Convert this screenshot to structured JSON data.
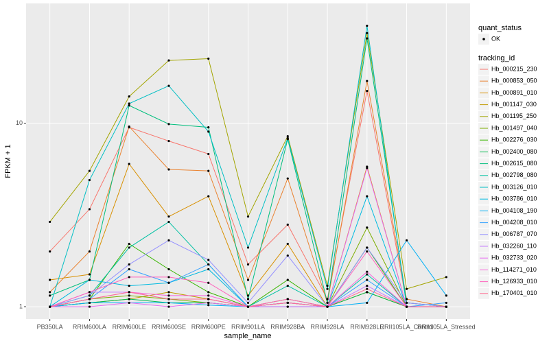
{
  "chart_data": {
    "type": "line",
    "x_label": "sample_name",
    "y_label": "FPKM + 1",
    "y_log": true,
    "grid": true,
    "categories": [
      "PB350LA",
      "RRIM600LA",
      "RRIM600LE",
      "RRIM600SE",
      "RRIM600PE",
      "RRIM901LA",
      "RRIM928BA",
      "RRIM928LA",
      "RRIM928LE",
      "RRII105LA_Control",
      "RRII105LA_Stressed"
    ],
    "ylim": [
      0.857,
      45
    ],
    "yticks": [
      1,
      10
    ],
    "point_color": "#000000",
    "quant_legend": {
      "title": "quant_status",
      "labels": [
        "OK"
      ]
    },
    "legend_title": "tracking_id",
    "series": [
      {
        "name": "Hb_000215_230",
        "color": "#F8766D",
        "values": [
          2.0,
          3.4,
          9.5,
          8.0,
          6.8,
          1.7,
          2.8,
          1.1,
          15,
          1.05,
          1.0
        ]
      },
      {
        "name": "Hb_000853_050",
        "color": "#EA8331",
        "values": [
          1.2,
          2.0,
          9.6,
          5.6,
          5.5,
          1.4,
          5.0,
          1.05,
          17,
          1.1,
          1.0
        ]
      },
      {
        "name": "Hb_000891_010",
        "color": "#D89000",
        "values": [
          1.4,
          1.5,
          6.0,
          3.1,
          4.0,
          1.15,
          2.2,
          1.0,
          5.8,
          1.0,
          1.0
        ]
      },
      {
        "name": "Hb_001147_030",
        "color": "#C09B00",
        "values": [
          1.0,
          1.05,
          1.1,
          1.2,
          1.1,
          1.0,
          1.05,
          1.0,
          1.2,
          1.0,
          1.0
        ]
      },
      {
        "name": "Hb_001195_250",
        "color": "#A3A500",
        "values": [
          2.9,
          5.5,
          14,
          22,
          22.5,
          3.1,
          8.5,
          1.3,
          31,
          1.25,
          1.45
        ]
      },
      {
        "name": "Hb_001497_040",
        "color": "#7CAE00",
        "values": [
          1.0,
          1.1,
          1.15,
          1.1,
          1.05,
          1.0,
          1.1,
          1.0,
          2.7,
          1.0,
          1.0
        ]
      },
      {
        "name": "Hb_002276_030",
        "color": "#39B600",
        "values": [
          1.0,
          1.1,
          2.2,
          1.6,
          1.2,
          1.0,
          1.4,
          1.0,
          2.1,
          1.0,
          1.0
        ]
      },
      {
        "name": "Hb_002400_080",
        "color": "#00BB4E",
        "values": [
          1.0,
          1.05,
          1.1,
          1.05,
          1.05,
          1.0,
          1.05,
          1.0,
          1.2,
          1.0,
          1.0
        ]
      },
      {
        "name": "Hb_002615_080",
        "color": "#00BF7D",
        "values": [
          1.15,
          1.4,
          12.5,
          9.9,
          9.5,
          1.1,
          8.2,
          1.05,
          29,
          1.05,
          1.0
        ]
      },
      {
        "name": "Hb_002798_080",
        "color": "#00C1A3",
        "values": [
          1.0,
          1.15,
          2.1,
          2.9,
          1.7,
          1.0,
          1.3,
          1.0,
          1.5,
          1.0,
          1.0
        ]
      },
      {
        "name": "Hb_003126_010",
        "color": "#00BFC4",
        "values": [
          1.0,
          4.9,
          12.8,
          16,
          9.0,
          2.1,
          8.3,
          1.25,
          34,
          1.0,
          1.0
        ]
      },
      {
        "name": "Hb_003786_010",
        "color": "#00BAE0",
        "values": [
          1.0,
          1.4,
          1.3,
          1.35,
          1.6,
          1.0,
          1.05,
          1.0,
          4.0,
          1.0,
          1.0
        ]
      },
      {
        "name": "Hb_004108_190",
        "color": "#00B0F6",
        "values": [
          1.0,
          1.05,
          1.05,
          1.05,
          1.02,
          1.0,
          1.0,
          1.0,
          1.05,
          2.3,
          1.15
        ]
      },
      {
        "name": "Hb_004208_010",
        "color": "#35A2FF",
        "values": [
          1.0,
          1.1,
          1.6,
          1.35,
          1.7,
          1.0,
          1.05,
          1.0,
          1.4,
          1.0,
          1.05
        ]
      },
      {
        "name": "Hb_006787_070",
        "color": "#9590FF",
        "values": [
          1.0,
          1.15,
          1.7,
          2.3,
          1.8,
          1.05,
          1.9,
          1.0,
          2.1,
          1.05,
          1.0
        ]
      },
      {
        "name": "Hb_032260_110",
        "color": "#C77CFF",
        "values": [
          1.0,
          1.2,
          1.2,
          1.1,
          1.1,
          1.0,
          1.05,
          1.0,
          1.3,
          1.0,
          1.0
        ]
      },
      {
        "name": "Hb_032733_020",
        "color": "#E76BF3",
        "values": [
          1.0,
          1.0,
          1.05,
          1.0,
          1.05,
          1.0,
          1.0,
          1.0,
          5.7,
          1.0,
          1.0
        ]
      },
      {
        "name": "Hb_114271_010",
        "color": "#FA62DB",
        "values": [
          1.0,
          1.1,
          1.2,
          1.15,
          1.15,
          1.0,
          1.05,
          1.0,
          1.55,
          1.0,
          1.0
        ]
      },
      {
        "name": "Hb_126933_010",
        "color": "#FF62BC",
        "values": [
          1.0,
          1.2,
          1.45,
          1.45,
          1.35,
          1.0,
          1.1,
          1.0,
          2.0,
          1.0,
          1.0
        ]
      },
      {
        "name": "Hb_170401_010",
        "color": "#FF6C91",
        "values": [
          1.0,
          1.1,
          1.2,
          1.1,
          1.1,
          1.0,
          1.05,
          1.0,
          1.25,
          1.0,
          1.0
        ]
      }
    ]
  }
}
